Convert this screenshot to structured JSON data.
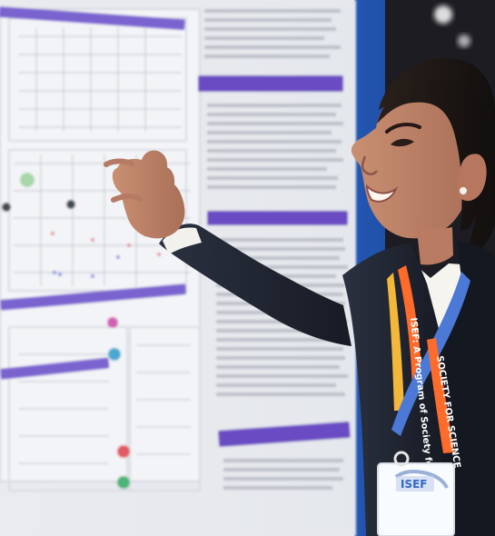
{
  "photo": {
    "lanyard_texts": [
      "SOCIETY FOR SCIENCE",
      "ISEF: A Program of Society for Science"
    ],
    "badge_text": "ISEF"
  },
  "colors": {
    "poster_purple": "#6a4bc3",
    "blue_panel": "#1f57b7",
    "jacket": "#1f2431",
    "lanyard_orange": "#ff6b2a",
    "lanyard_blue": "#4c79d6",
    "lanyard_yellow": "#f3b73a"
  }
}
